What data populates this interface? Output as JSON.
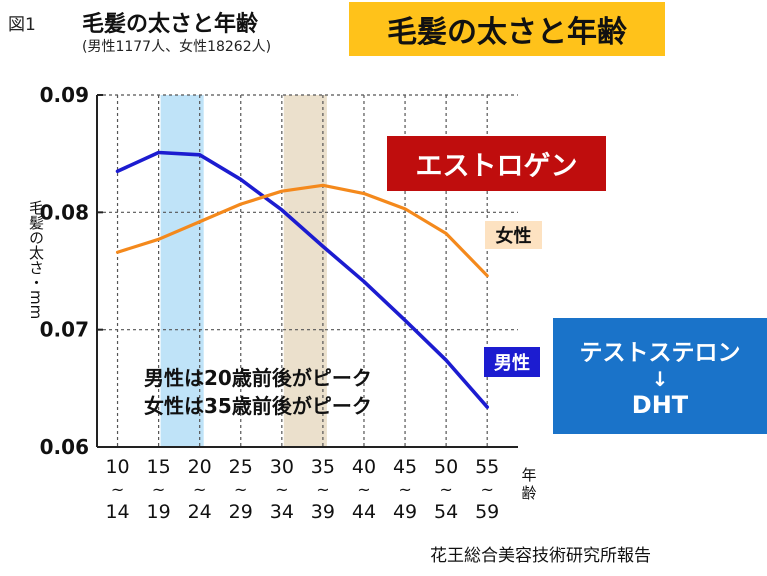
{
  "figure": {
    "label": "図1",
    "title": "毛髪の太さと年齢",
    "subtitle": "(男性1177人、女性18262人)",
    "banner": "毛髪の太さと年齢",
    "source": "花王総合美容技術研究所報告"
  },
  "annotations": {
    "estrogen": "エストロゲン",
    "testosterone": "テストステロン",
    "arrow": "↓",
    "dht": "DHT",
    "peak_male": "男性は20歳前後がピーク",
    "peak_female": "女性は35歳前後がピーク"
  },
  "colors": {
    "male": "#1c1cd0",
    "female": "#f4891c",
    "highlight_male": "#bfe3f8",
    "highlight_female": "#ebe0cc",
    "banner": "#ffc21a",
    "estrogen": "#bf0d0d",
    "testosterone": "#1a73c9"
  },
  "chart_data": {
    "type": "line",
    "title": "毛髪の太さと年齢",
    "xlabel": "年齢",
    "ylabel": "毛髪の太さ・mm",
    "categories": [
      {
        "top": "10",
        "mid": "~",
        "bot": "14"
      },
      {
        "top": "15",
        "mid": "~",
        "bot": "19"
      },
      {
        "top": "20",
        "mid": "~",
        "bot": "24"
      },
      {
        "top": "25",
        "mid": "~",
        "bot": "29"
      },
      {
        "top": "30",
        "mid": "~",
        "bot": "34"
      },
      {
        "top": "35",
        "mid": "~",
        "bot": "39"
      },
      {
        "top": "40",
        "mid": "~",
        "bot": "44"
      },
      {
        "top": "45",
        "mid": "~",
        "bot": "49"
      },
      {
        "top": "50",
        "mid": "~",
        "bot": "54"
      },
      {
        "top": "55",
        "mid": "~",
        "bot": "59"
      }
    ],
    "ylim": [
      0.06,
      0.09
    ],
    "yticks": [
      "0.06",
      "0.07",
      "0.08",
      "0.09"
    ],
    "grid": true,
    "series": [
      {
        "name": "男性",
        "values": [
          0.0835,
          0.0851,
          0.0849,
          0.0828,
          0.0802,
          0.0771,
          0.0741,
          0.0708,
          0.0674,
          0.0634
        ]
      },
      {
        "name": "女性",
        "values": [
          0.0766,
          0.0777,
          0.0792,
          0.0807,
          0.0818,
          0.0823,
          0.0816,
          0.0803,
          0.0782,
          0.0746
        ]
      }
    ],
    "highlights": [
      {
        "series": "男性",
        "from_category": 1,
        "to_category": 2
      },
      {
        "series": "女性",
        "from_category": 4,
        "to_category": 5
      }
    ]
  }
}
